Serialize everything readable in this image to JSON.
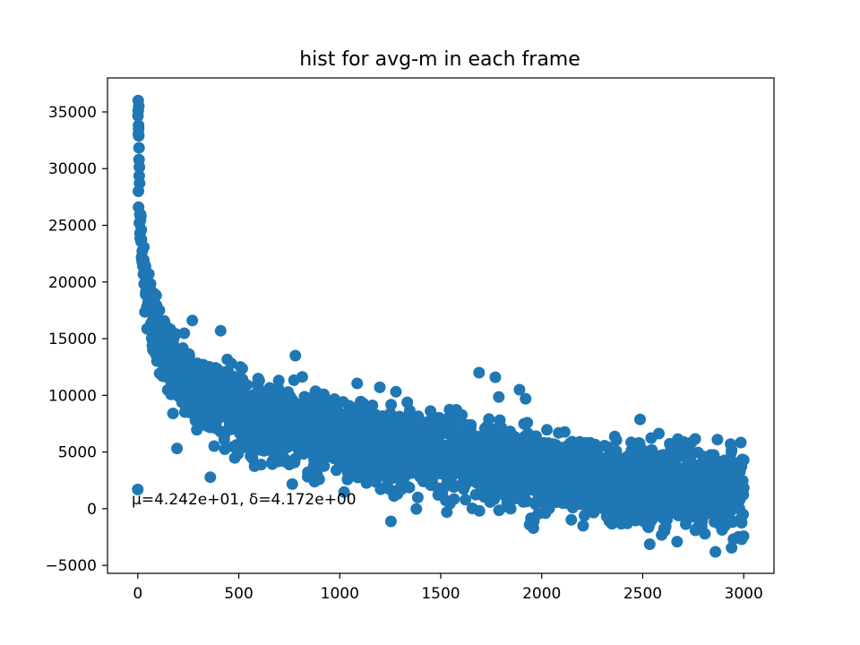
{
  "chart_data": {
    "type": "scatter",
    "title": "hist for avg-m in each frame",
    "xlabel": "",
    "ylabel": "",
    "xlim": [
      -150,
      3150
    ],
    "ylim": [
      -5700,
      38000
    ],
    "x_ticks": [
      0,
      500,
      1000,
      1500,
      2000,
      2500,
      3000
    ],
    "y_ticks": [
      -5000,
      0,
      5000,
      10000,
      15000,
      20000,
      25000,
      30000,
      35000
    ],
    "x_tick_labels": [
      "0",
      "500",
      "1000",
      "1500",
      "2000",
      "2500",
      "3000"
    ],
    "y_tick_labels": [
      "−5000",
      "0",
      "5000",
      "10000",
      "15000",
      "20000",
      "25000",
      "30000",
      "35000"
    ],
    "annotation": "μ=4.242e+01, δ=4.172e+00",
    "annotation_pos": [
      -30,
      400
    ],
    "grid": false,
    "marker_color": "#1f77b4",
    "n_points": 3000,
    "x_range": [
      0,
      3000
    ],
    "trend": [
      [
        0,
        36000
      ],
      [
        5,
        33000
      ],
      [
        10,
        26000
      ],
      [
        20,
        22500
      ],
      [
        40,
        19500
      ],
      [
        70,
        17000
      ],
      [
        100,
        15500
      ],
      [
        150,
        13500
      ],
      [
        200,
        12000
      ],
      [
        300,
        10500
      ],
      [
        400,
        9500
      ],
      [
        500,
        8500
      ],
      [
        700,
        7300
      ],
      [
        1000,
        6200
      ],
      [
        1300,
        5300
      ],
      [
        1600,
        4500
      ],
      [
        2000,
        3500
      ],
      [
        2400,
        2600
      ],
      [
        2800,
        1800
      ],
      [
        3000,
        1300
      ]
    ],
    "spread_sd": 1700,
    "highlighted_points": [
      {
        "x": 2,
        "y": 36000
      },
      {
        "x": 5,
        "y": 35500
      },
      {
        "x": 4,
        "y": 33500
      },
      {
        "x": 6,
        "y": 30800
      },
      {
        "x": 3,
        "y": 28000
      },
      {
        "x": 4,
        "y": 26600
      },
      {
        "x": 8,
        "y": 25200
      },
      {
        "x": 0,
        "y": 1700
      },
      {
        "x": 270,
        "y": 16600
      },
      {
        "x": 410,
        "y": 15700
      },
      {
        "x": 780,
        "y": 13500
      },
      {
        "x": 1690,
        "y": 12000
      },
      {
        "x": 1770,
        "y": 11600
      },
      {
        "x": 1890,
        "y": 10500
      },
      {
        "x": 1920,
        "y": 9700
      },
      {
        "x": 2860,
        "y": -3800
      },
      {
        "x": 2670,
        "y": -2900
      },
      {
        "x": 1940,
        "y": -1400
      },
      {
        "x": 1530,
        "y": -300
      },
      {
        "x": 2990,
        "y": -2700
      },
      {
        "x": 2480,
        "y": 5800
      },
      {
        "x": 2870,
        "y": 6100
      },
      {
        "x": 3000,
        "y": 4300
      },
      {
        "x": 2940,
        "y": 5200
      }
    ]
  }
}
